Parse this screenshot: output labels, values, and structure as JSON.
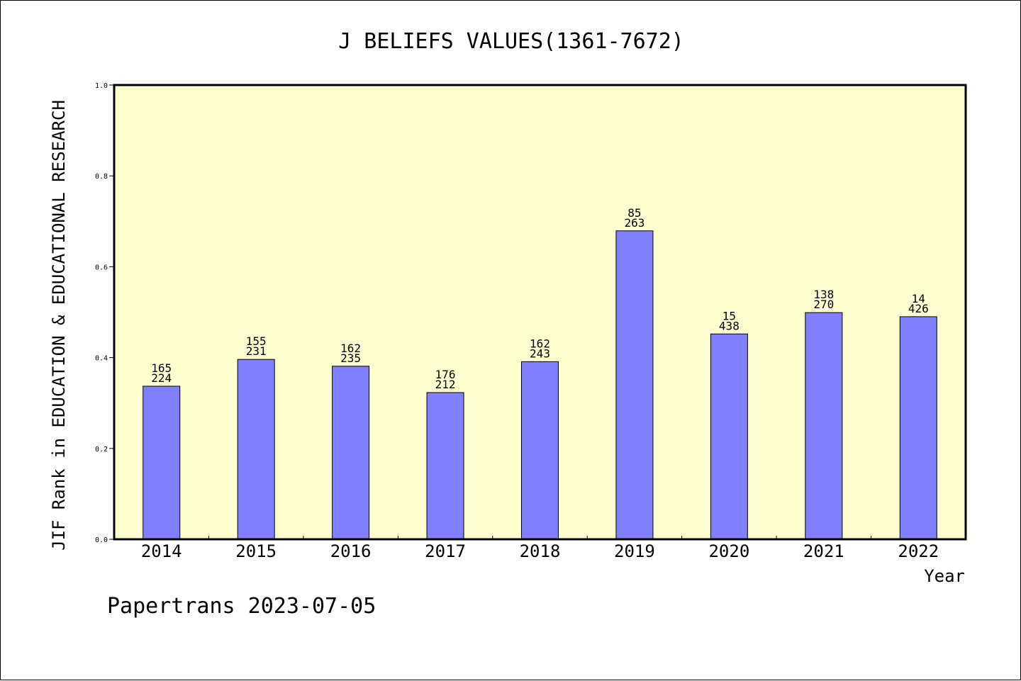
{
  "chart_data": {
    "type": "bar",
    "title": "J BELIEFS VALUES(1361-7672)",
    "ylabel": "JIF Rank in EDUCATION & EDUCATIONAL RESEARCH",
    "xlabel": "Year",
    "categories": [
      "2014",
      "2015",
      "2016",
      "2017",
      "2018",
      "2019",
      "2020",
      "2021",
      "2022"
    ],
    "values": [
      0.337,
      0.396,
      0.381,
      0.323,
      0.391,
      0.679,
      0.452,
      0.499,
      0.49
    ],
    "rank": [
      "165",
      "155",
      "162",
      "176",
      "162",
      "85",
      "15",
      "138",
      "14"
    ],
    "total": [
      "224",
      "231",
      "235",
      "212",
      "243",
      "263",
      "438",
      "270",
      "426"
    ],
    "ylim": [
      0,
      1.0
    ],
    "yticks": [
      "0.0",
      "0.2",
      "0.4",
      "0.6",
      "0.8",
      "1.0"
    ],
    "grid": false,
    "legend": "none",
    "colors": {
      "bar": "#8080ff",
      "plot_bg": "#ffffd0",
      "axis": "#000000"
    }
  },
  "footer": "Papertrans 2023-07-05"
}
